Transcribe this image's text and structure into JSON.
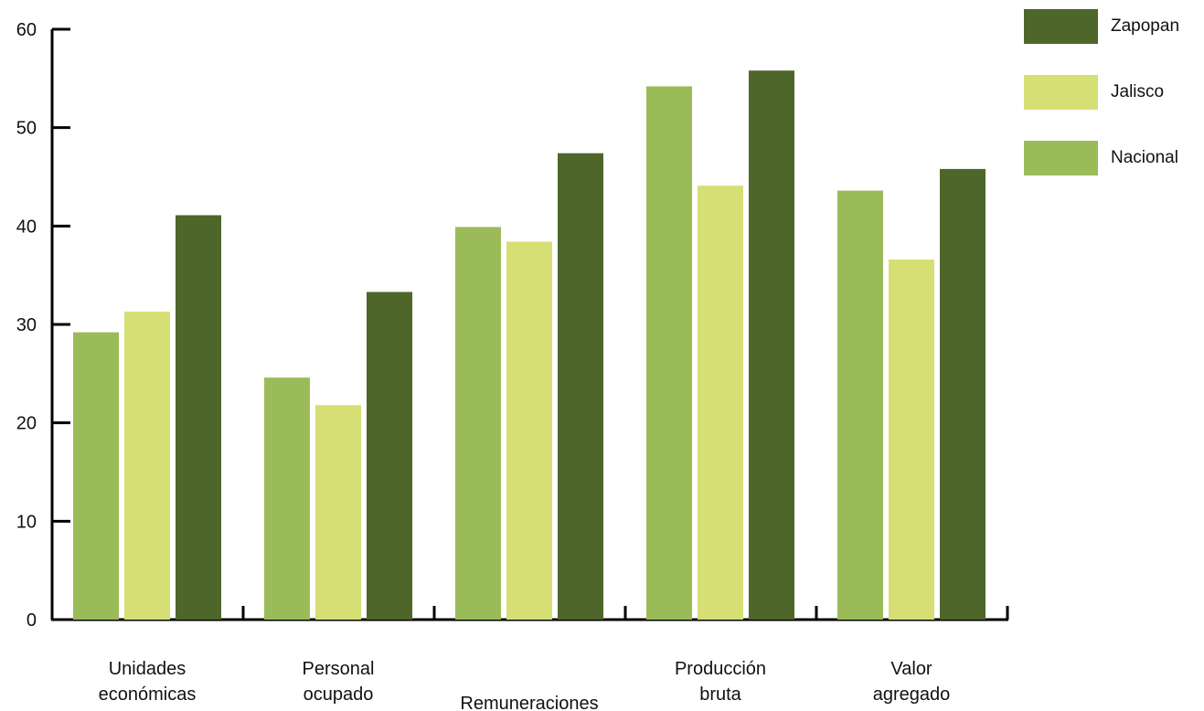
{
  "chart_data": {
    "type": "bar",
    "categories": [
      [
        "Unidades",
        "económicas"
      ],
      [
        "Personal",
        "ocupado"
      ],
      [
        "Remuneraciones"
      ],
      [
        "Producción",
        "bruta"
      ],
      [
        "Valor",
        "agregado"
      ]
    ],
    "series": [
      {
        "name": "Nacional",
        "color": "#9bbb59",
        "values": [
          29.2,
          24.6,
          39.9,
          54.2,
          43.6
        ]
      },
      {
        "name": "Jalisco",
        "color": "#d6df74",
        "values": [
          31.3,
          21.8,
          38.4,
          44.1,
          36.6
        ]
      },
      {
        "name": "Zapopan",
        "color": "#4e6629",
        "values": [
          41.1,
          33.3,
          47.4,
          55.8,
          45.8
        ]
      }
    ],
    "legend_order": [
      "Zapopan",
      "Jalisco",
      "Nacional"
    ],
    "legend_position": "top-right",
    "yticks": [
      0,
      10,
      20,
      30,
      40,
      50,
      60
    ],
    "ylim": [
      0,
      60
    ],
    "title": "",
    "xlabel": "",
    "ylabel": "",
    "grid": false
  }
}
